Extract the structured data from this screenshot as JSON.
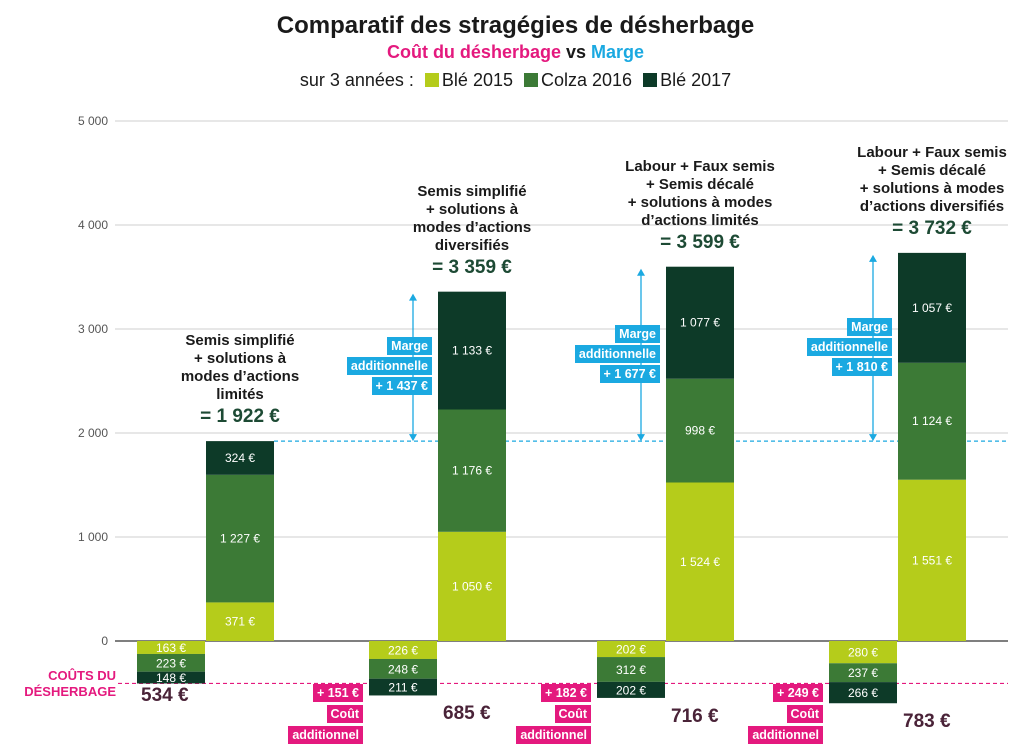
{
  "header": {
    "title": "Comparatif des stragégies de désherbage",
    "subtitle_part1": "Coût du désherbage",
    "subtitle_vs": "vs",
    "subtitle_part2": "Marge",
    "legend_prefix": "sur 3 années :",
    "legend": [
      "Blé 2015",
      "Colza 2016",
      "Blé 2017"
    ]
  },
  "colors": {
    "ble2015": "#b5cc1b",
    "colza2016": "#3c7a36",
    "ble2017": "#0d3a28",
    "marge": "#1ba9e1",
    "cout": "#e4197e",
    "cost_total_text": "#4a2338",
    "title_total_text": "#1d4a34"
  },
  "costs_label": [
    "COÛTS DU",
    "DÉSHERBAGE"
  ],
  "chart_data": {
    "type": "bar",
    "stacked": true,
    "ylim": [
      -700,
      5000
    ],
    "yticks": [
      0,
      1000,
      2000,
      3000,
      4000,
      5000
    ],
    "ytick_labels": [
      "0",
      "1 000",
      "2 000",
      "3 000",
      "4 000",
      "5 000"
    ],
    "grid": true,
    "legend_position": "top",
    "series_names": [
      "Blé 2015",
      "Colza 2016",
      "Blé 2017"
    ],
    "strategies": [
      {
        "label_lines": [
          "Semis simplifié",
          "+ solutions à",
          "modes d’actions",
          "limités"
        ],
        "total_label": "= 1 922 €",
        "marge_values": [
          371,
          1227,
          324
        ],
        "marge_labels": [
          "371 €",
          "1 227 €",
          "324 €"
        ],
        "cost_values": [
          163,
          223,
          148
        ],
        "cost_labels": [
          "163 €",
          "223 €",
          "148 €"
        ],
        "cost_total": "534 €",
        "marge_additionnelle": null,
        "cout_additionnel": null
      },
      {
        "label_lines": [
          "Semis simplifié",
          "+ solutions à",
          "modes d’actions",
          "diversifiés"
        ],
        "total_label": "= 3 359 €",
        "marge_values": [
          1050,
          1176,
          1133
        ],
        "marge_labels": [
          "1 050 €",
          "1 176 €",
          "1 133 €"
        ],
        "cost_values": [
          226,
          248,
          211
        ],
        "cost_labels": [
          "226 €",
          "248 €",
          "211 €"
        ],
        "cost_total": "685 €",
        "marge_additionnelle": [
          "Marge",
          "additionnelle",
          "+ 1 437 €"
        ],
        "cout_additionnel": [
          "+ 151 €",
          "Coût",
          "additionnel"
        ]
      },
      {
        "label_lines": [
          "Labour + Faux semis",
          "+ Semis décalé",
          "+ solutions à modes",
          "d’actions limités"
        ],
        "total_label": "= 3 599 €",
        "marge_values": [
          1524,
          998,
          1077
        ],
        "marge_labels": [
          "1 524 €",
          "998 €",
          "1 077 €"
        ],
        "cost_values": [
          202,
          312,
          202
        ],
        "cost_labels": [
          "202 €",
          "312 €",
          "202 €"
        ],
        "cost_total": "716 €",
        "marge_additionnelle": [
          "Marge",
          "additionnelle",
          "+ 1 677 €"
        ],
        "cout_additionnel": [
          "+ 182 €",
          "Coût",
          "additionnel"
        ]
      },
      {
        "label_lines": [
          "Labour + Faux semis",
          "+ Semis décalé",
          "+ solutions à modes",
          "d’actions diversifiés"
        ],
        "total_label": "= 3 732 €",
        "marge_values": [
          1551,
          1124,
          1057
        ],
        "marge_labels": [
          "1 551 €",
          "1 124 €",
          "1 057 €"
        ],
        "cost_values": [
          280,
          237,
          266
        ],
        "cost_labels": [
          "280 €",
          "237 €",
          "266 €"
        ],
        "cost_total": "783 €",
        "marge_additionnelle": [
          "Marge",
          "additionnelle",
          "+ 1 810 €"
        ],
        "cout_additionnel": [
          "+ 249 €",
          "Coût",
          "additionnel"
        ]
      }
    ]
  }
}
